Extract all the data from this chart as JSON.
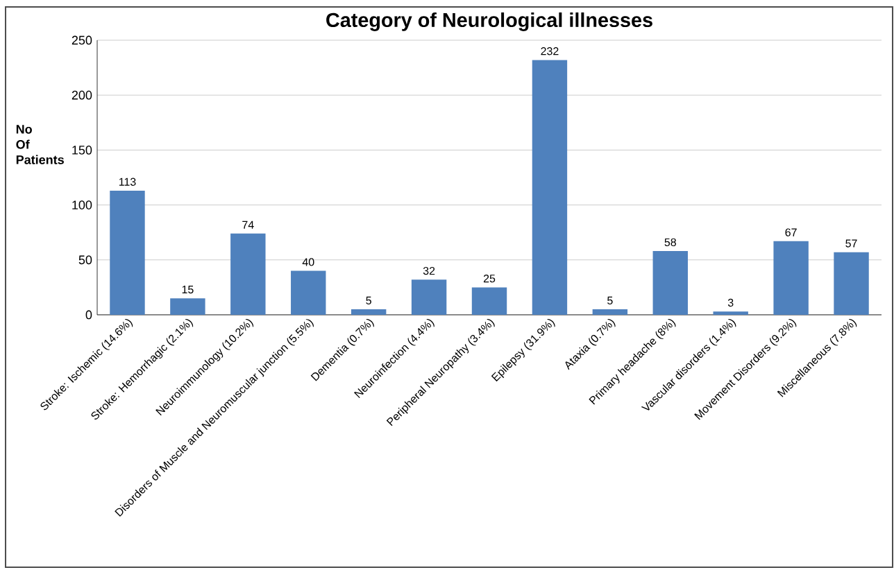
{
  "chart_data": {
    "type": "bar",
    "title": "Category of Neurological illnesses",
    "ylabel": "No Of Patients",
    "categories": [
      "Stroke: Ischemic (14.6%)",
      "Stroke: Hemorrhagic (2.1%)",
      "Neuroimmunology (10.2%)",
      "Disorders of Muscle and Neuromuscular junction (5.5%)",
      "Dementia (0.7%)",
      "Neuroinfection (4.4%)",
      "Peripheral Neuropathy (3.4%)",
      "Epilepsy (31.9%)",
      "Ataxia (0.7%)",
      "Primary headache (8%)",
      "Vascular disorders (1.4%)",
      "Movement Disorders (9.2%)",
      "Miscellaneous (7.8%)"
    ],
    "values": [
      113,
      15,
      74,
      40,
      5,
      32,
      25,
      232,
      5,
      58,
      3,
      67,
      57
    ],
    "color": "#4f81bd",
    "ylim": [
      0,
      250
    ],
    "yticks": [
      0,
      50,
      100,
      150,
      200,
      250
    ],
    "grid": "y",
    "data_labels": true
  }
}
